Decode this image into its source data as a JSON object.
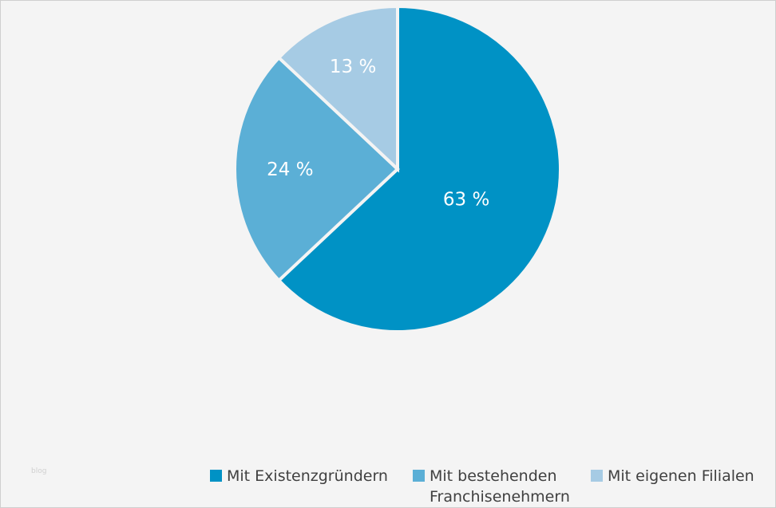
{
  "chart_data": {
    "type": "pie",
    "title": "",
    "slices": [
      {
        "label": "Mit Existenzgründern",
        "value": 63,
        "data_label": "63 %",
        "color": "#0092c5"
      },
      {
        "label": "Mit bestehenden Franchisenehmern",
        "label_line1": "Mit bestehenden",
        "label_line2": "Franchisenehmern",
        "value": 24,
        "data_label": "24 %",
        "color": "#5bafd6"
      },
      {
        "label": "Mit eigenen Filialen",
        "value": 13,
        "data_label": "13 %",
        "color": "#a6cbe4"
      }
    ],
    "start": "top",
    "direction": "clockwise",
    "legend_position": "bottom-right"
  },
  "watermark": "blog"
}
